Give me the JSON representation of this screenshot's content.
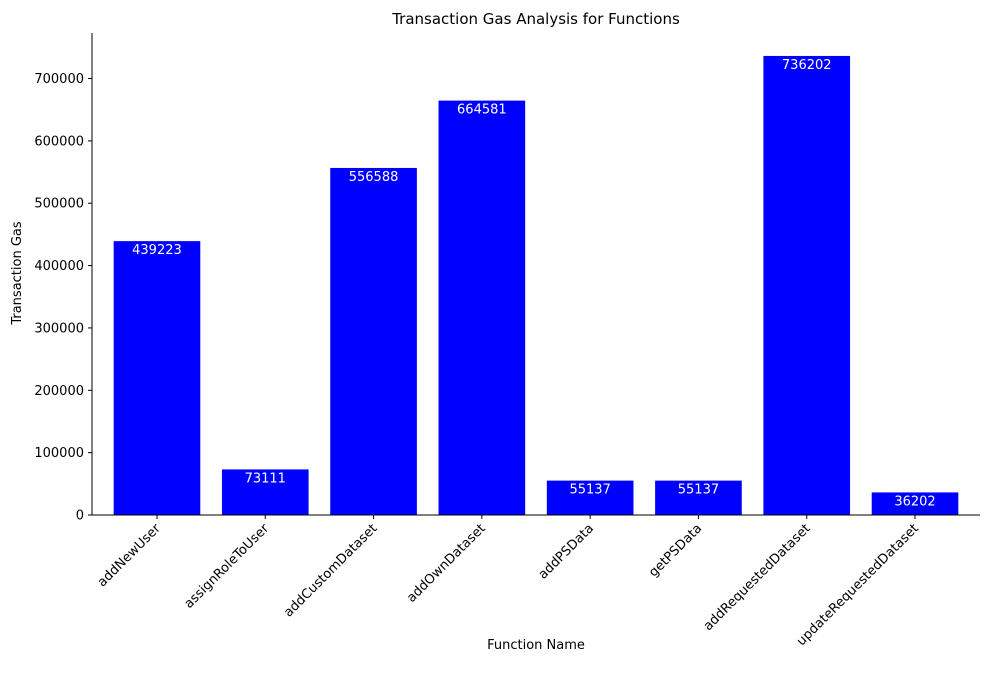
{
  "chart_data": {
    "type": "bar",
    "title": "Transaction Gas Analysis for Functions",
    "xlabel": "Function Name",
    "ylabel": "Transaction Gas",
    "categories": [
      "addNewUser",
      "assignRoleToUser",
      "addCustomDataset",
      "addOwnDataset",
      "addPSData",
      "getPSData",
      "addRequestedDataset",
      "updateRequestedDataset"
    ],
    "values": [
      439223,
      73111,
      556588,
      664581,
      55137,
      55137,
      736202,
      36202
    ],
    "yticks": [
      0,
      100000,
      200000,
      300000,
      400000,
      500000,
      600000,
      700000
    ],
    "ylim": [
      0,
      773012
    ],
    "bar_color": "#0000ff",
    "grid": false,
    "show_data_labels": true
  }
}
